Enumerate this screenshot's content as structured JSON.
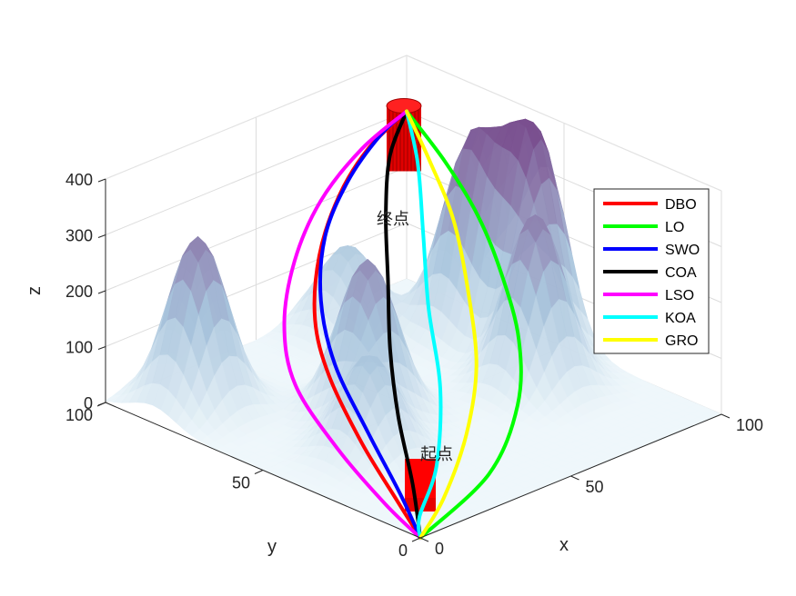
{
  "chart_data": {
    "type": "line",
    "subtype": "3d-path-over-surface",
    "title": "",
    "xlabel": "x",
    "ylabel": "y",
    "zlabel": "z",
    "xlim": [
      0,
      100
    ],
    "ylim": [
      0,
      100
    ],
    "zlim": [
      0,
      400
    ],
    "xticks": [
      "0",
      "50",
      "100"
    ],
    "yticks": [
      "0",
      "50",
      "100"
    ],
    "zticks": [
      "0",
      "100",
      "200",
      "300",
      "400"
    ],
    "grid": true,
    "legend_position": "top-right",
    "surface": {
      "colormap": [
        "#eef7fb",
        "#a8c4dc",
        "#7a4f8f"
      ],
      "peaks": [
        {
          "x": 15,
          "y": 85,
          "h": 300
        },
        {
          "x": 40,
          "y": 55,
          "h": 275
        },
        {
          "x": 25,
          "y": 40,
          "h": 170
        },
        {
          "x": 80,
          "y": 40,
          "h": 300
        },
        {
          "x": 95,
          "y": 55,
          "h": 380
        },
        {
          "x": 90,
          "y": 70,
          "h": 330
        },
        {
          "x": 70,
          "y": 90,
          "h": 150
        }
      ]
    },
    "start": {
      "label": "起点",
      "x": 0,
      "y": 0,
      "z": 0
    },
    "end": {
      "label": "终点",
      "x": 100,
      "y": 100,
      "z": 300
    },
    "series": [
      {
        "name": "DBO",
        "color": "#ff0000",
        "points": [
          [
            0,
            0,
            0
          ],
          [
            5,
            12,
            25
          ],
          [
            12,
            30,
            70
          ],
          [
            22,
            50,
            120
          ],
          [
            33,
            65,
            160
          ],
          [
            48,
            78,
            210
          ],
          [
            65,
            88,
            255
          ],
          [
            82,
            95,
            285
          ],
          [
            100,
            100,
            300
          ]
        ]
      },
      {
        "name": "LO",
        "color": "#00ff00",
        "points": [
          [
            0,
            0,
            0
          ],
          [
            28,
            5,
            40
          ],
          [
            48,
            15,
            95
          ],
          [
            62,
            28,
            150
          ],
          [
            74,
            45,
            200
          ],
          [
            84,
            62,
            240
          ],
          [
            92,
            80,
            275
          ],
          [
            100,
            100,
            300
          ]
        ]
      },
      {
        "name": "SWO",
        "color": "#0000ff",
        "points": [
          [
            0,
            0,
            0
          ],
          [
            6,
            12,
            35
          ],
          [
            14,
            30,
            85
          ],
          [
            24,
            50,
            135
          ],
          [
            36,
            66,
            185
          ],
          [
            52,
            80,
            230
          ],
          [
            70,
            90,
            265
          ],
          [
            88,
            97,
            290
          ],
          [
            100,
            100,
            300
          ]
        ]
      },
      {
        "name": "COA",
        "color": "#000000",
        "points": [
          [
            0,
            0,
            0
          ],
          [
            10,
            12,
            45
          ],
          [
            22,
            28,
            100
          ],
          [
            36,
            44,
            150
          ],
          [
            52,
            60,
            200
          ],
          [
            68,
            76,
            245
          ],
          [
            84,
            90,
            280
          ],
          [
            100,
            100,
            300
          ]
        ]
      },
      {
        "name": "LSO",
        "color": "#ff00ff",
        "points": [
          [
            0,
            0,
            0
          ],
          [
            3,
            14,
            20
          ],
          [
            8,
            34,
            60
          ],
          [
            16,
            55,
            105
          ],
          [
            28,
            70,
            150
          ],
          [
            44,
            82,
            200
          ],
          [
            62,
            91,
            245
          ],
          [
            82,
            97,
            280
          ],
          [
            100,
            100,
            300
          ]
        ]
      },
      {
        "name": "KOA",
        "color": "#00ffff",
        "points": [
          [
            0,
            0,
            0
          ],
          [
            6,
            6,
            10
          ],
          [
            20,
            14,
            50
          ],
          [
            38,
            30,
            110
          ],
          [
            55,
            50,
            170
          ],
          [
            72,
            68,
            225
          ],
          [
            88,
            85,
            270
          ],
          [
            100,
            100,
            300
          ]
        ]
      },
      {
        "name": "GRO",
        "color": "#ffff00",
        "points": [
          [
            0,
            0,
            0
          ],
          [
            14,
            6,
            25
          ],
          [
            32,
            16,
            75
          ],
          [
            50,
            30,
            125
          ],
          [
            68,
            50,
            175
          ],
          [
            82,
            68,
            225
          ],
          [
            92,
            85,
            265
          ],
          [
            100,
            100,
            300
          ]
        ]
      }
    ]
  }
}
